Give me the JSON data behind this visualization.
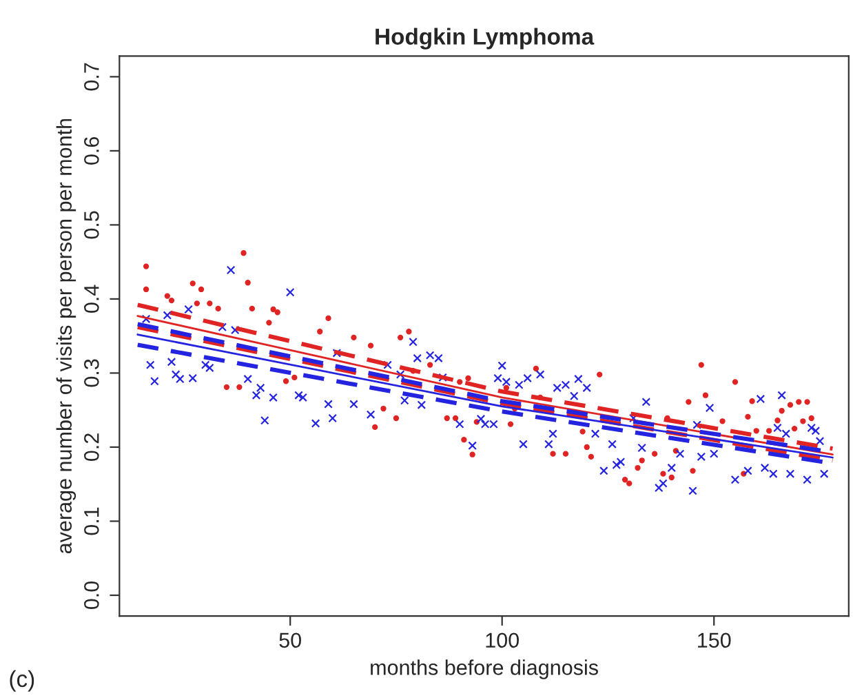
{
  "chart_data": {
    "type": "scatter",
    "title": "Hodgkin Lymphoma",
    "xlabel": "months before diagnosis",
    "ylabel": "average number of visits per person per month",
    "annotations": [
      "(c)"
    ],
    "xlim": [
      9.7,
      181.8
    ],
    "xticks": [
      50,
      100,
      150
    ],
    "ylim": [
      -0.028,
      0.728
    ],
    "yticks": [
      {
        "value": 0.0,
        "label": "0.0"
      },
      0.1,
      0.2,
      0.3,
      0.4,
      0.5,
      0.6,
      0.7
    ],
    "grid": false,
    "legend": false,
    "series": [
      {
        "marker": "circle",
        "color": "#e02424",
        "x": [
          16,
          16,
          21,
          22,
          27,
          29,
          28,
          31,
          33,
          39,
          40,
          41,
          45,
          46,
          47,
          57,
          59,
          35,
          38,
          49,
          51,
          65,
          69,
          76,
          78,
          70,
          75,
          72,
          83,
          79,
          87,
          89,
          90,
          92,
          91,
          93,
          94,
          101,
          108,
          102,
          112,
          115,
          120,
          121,
          123,
          119,
          109,
          103,
          129,
          130,
          132,
          133,
          136,
          139,
          140,
          138,
          144,
          145,
          147,
          148,
          152,
          155,
          158,
          159,
          160,
          163,
          165,
          166,
          168,
          169,
          170,
          172,
          171,
          173,
          157,
          141
        ],
        "values": [
          0.444,
          0.413,
          0.404,
          0.398,
          0.421,
          0.413,
          0.394,
          0.394,
          0.387,
          0.462,
          0.422,
          0.387,
          0.368,
          0.386,
          0.382,
          0.356,
          0.374,
          0.281,
          0.281,
          0.289,
          0.294,
          0.348,
          0.337,
          0.348,
          0.356,
          0.227,
          0.239,
          0.252,
          0.311,
          0.303,
          0.239,
          0.239,
          0.288,
          0.293,
          0.21,
          0.19,
          0.234,
          0.28,
          0.306,
          0.231,
          0.191,
          0.191,
          0.2,
          0.187,
          0.298,
          0.221,
          0.267,
          0.252,
          0.156,
          0.151,
          0.172,
          0.182,
          0.191,
          0.239,
          0.159,
          0.164,
          0.261,
          0.168,
          0.311,
          0.27,
          0.235,
          0.288,
          0.241,
          0.262,
          0.222,
          0.222,
          0.236,
          0.249,
          0.257,
          0.225,
          0.261,
          0.261,
          0.235,
          0.239,
          0.164,
          0.195
        ]
      },
      {
        "marker": "cross",
        "color": "#2424e0",
        "x": [
          16,
          17,
          18,
          22,
          23,
          24,
          27,
          26,
          21,
          36,
          50,
          40,
          43,
          42,
          46,
          44,
          52,
          53,
          56,
          59,
          60,
          65,
          61,
          30,
          31,
          34,
          37,
          69,
          79,
          80,
          83,
          85,
          73,
          76,
          77,
          81,
          86,
          90,
          93,
          95,
          96,
          98,
          100,
          99,
          101,
          104,
          106,
          109,
          105,
          111,
          112,
          113,
          115,
          117,
          118,
          120,
          122,
          124,
          127,
          128,
          126,
          131,
          134,
          133,
          137,
          138,
          140,
          142,
          145,
          146,
          147,
          149,
          150,
          155,
          158,
          161,
          162,
          164,
          165,
          166,
          167,
          168,
          172,
          173,
          174,
          175,
          176
        ],
        "values": [
          0.373,
          0.311,
          0.289,
          0.315,
          0.298,
          0.292,
          0.293,
          0.386,
          0.378,
          0.439,
          0.409,
          0.292,
          0.28,
          0.27,
          0.267,
          0.236,
          0.27,
          0.267,
          0.232,
          0.258,
          0.239,
          0.258,
          0.327,
          0.311,
          0.307,
          0.362,
          0.358,
          0.244,
          0.342,
          0.32,
          0.324,
          0.32,
          0.311,
          0.298,
          0.263,
          0.257,
          0.294,
          0.231,
          0.202,
          0.238,
          0.231,
          0.231,
          0.31,
          0.293,
          0.288,
          0.284,
          0.293,
          0.298,
          0.204,
          0.204,
          0.218,
          0.28,
          0.284,
          0.269,
          0.292,
          0.28,
          0.218,
          0.168,
          0.176,
          0.18,
          0.204,
          0.239,
          0.261,
          0.199,
          0.145,
          0.151,
          0.172,
          0.191,
          0.141,
          0.23,
          0.187,
          0.253,
          0.191,
          0.156,
          0.168,
          0.265,
          0.172,
          0.164,
          0.226,
          0.27,
          0.218,
          0.164,
          0.156,
          0.226,
          0.222,
          0.208,
          0.164
        ]
      },
      {
        "type": "line",
        "line_style": "dashed",
        "color": "#e02424",
        "x": [
          14,
          100,
          178
        ],
        "values": [
          0.392,
          0.275,
          0.198
        ]
      },
      {
        "type": "line",
        "line_style": "solid",
        "color": "#e02424",
        "x": [
          14,
          100,
          178
        ],
        "values": [
          0.377,
          0.267,
          0.19
        ]
      },
      {
        "type": "line",
        "line_style": "dashed",
        "color": "#e02424",
        "x": [
          14,
          100,
          178
        ],
        "values": [
          0.362,
          0.259,
          0.182
        ]
      },
      {
        "type": "line",
        "line_style": "dashed",
        "color": "#2424e0",
        "x": [
          14,
          100,
          178
        ],
        "values": [
          0.366,
          0.262,
          0.193
        ]
      },
      {
        "type": "line",
        "line_style": "solid",
        "color": "#2424e0",
        "x": [
          14,
          100,
          178
        ],
        "values": [
          0.352,
          0.255,
          0.186
        ]
      },
      {
        "type": "line",
        "line_style": "dashed",
        "color": "#2424e0",
        "x": [
          14,
          100,
          178
        ],
        "values": [
          0.338,
          0.248,
          0.178
        ]
      }
    ]
  }
}
